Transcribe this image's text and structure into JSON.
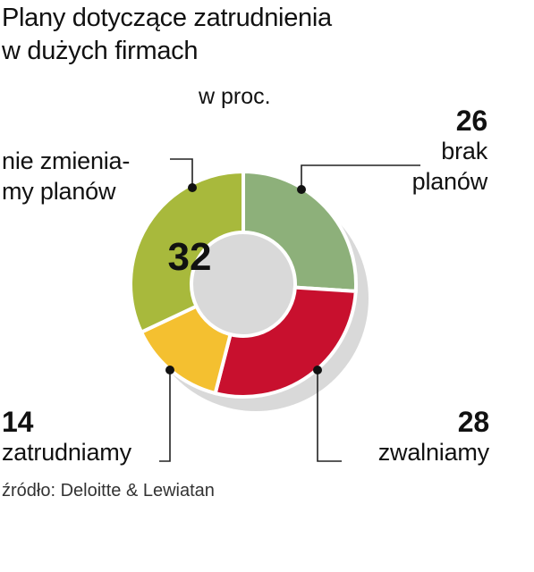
{
  "title_line1": "Plany dotyczące zatrudnienia",
  "title_line2": "w dużych firmach",
  "unit": "w proc.",
  "source": "źródło: Deloitte & Lewiatan",
  "chart_data": {
    "type": "pie",
    "title": "Plany dotyczące zatrudnienia w dużych firmach",
    "unit": "w proc.",
    "slices": [
      {
        "label_line1": "brak",
        "label_line2": "planów",
        "value": 26,
        "color": "#8db07a"
      },
      {
        "label_line1": "zwalniamy",
        "label_line2": "",
        "value": 28,
        "color": "#c8102e"
      },
      {
        "label_line1": "zatrudniamy",
        "label_line2": "",
        "value": 14,
        "color": "#f4c030"
      },
      {
        "label_line1": "nie zmienia-",
        "label_line2": "my planów",
        "value": 32,
        "color": "#a8b93c"
      }
    ]
  }
}
